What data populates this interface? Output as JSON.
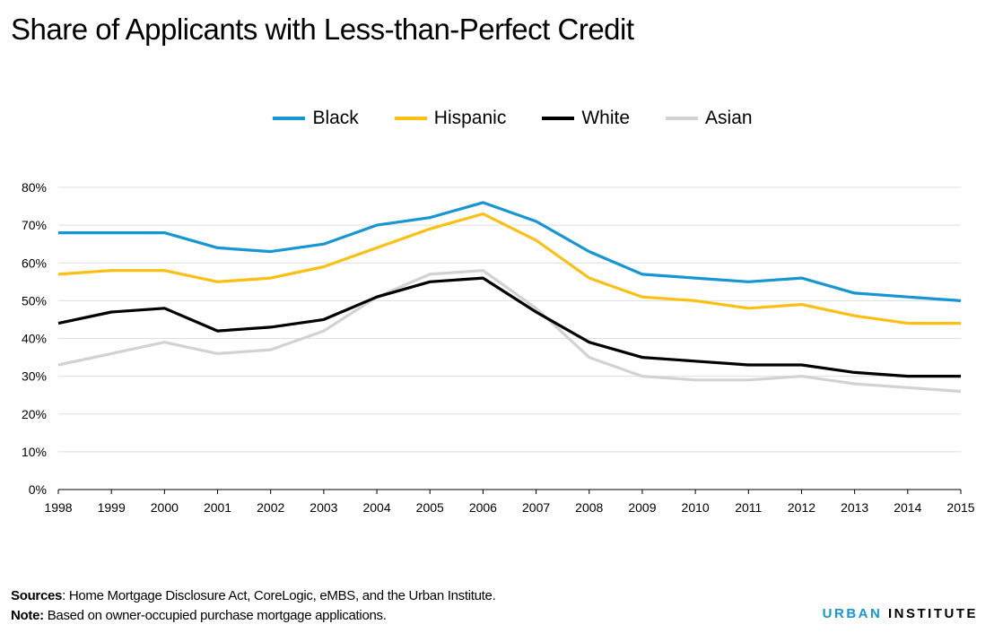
{
  "chart_data": {
    "type": "line",
    "title": "Share of Applicants with Less-than-Perfect Credit",
    "xlabel": "",
    "ylabel": "",
    "x": [
      1998,
      1999,
      2000,
      2001,
      2002,
      2003,
      2004,
      2005,
      2006,
      2007,
      2008,
      2009,
      2010,
      2011,
      2012,
      2013,
      2014,
      2015
    ],
    "ylim": [
      0,
      80
    ],
    "yticks": [
      "0%",
      "10%",
      "20%",
      "30%",
      "40%",
      "50%",
      "60%",
      "70%",
      "80%"
    ],
    "grid": true,
    "legend": "top",
    "series": [
      {
        "name": "Black",
        "color": "#1696d2",
        "values": [
          68,
          68,
          68,
          64,
          63,
          65,
          70,
          72,
          76,
          71,
          63,
          57,
          56,
          55,
          56,
          52,
          51,
          50
        ]
      },
      {
        "name": "Hispanic",
        "color": "#fdbf11",
        "values": [
          57,
          58,
          58,
          55,
          56,
          59,
          64,
          69,
          73,
          66,
          56,
          51,
          50,
          48,
          49,
          46,
          44,
          44
        ]
      },
      {
        "name": "White",
        "color": "#000000",
        "values": [
          44,
          47,
          48,
          42,
          43,
          45,
          51,
          55,
          56,
          47,
          39,
          35,
          34,
          33,
          33,
          31,
          30,
          30
        ]
      },
      {
        "name": "Asian",
        "color": "#d2d2d2",
        "values": [
          33,
          36,
          39,
          36,
          37,
          42,
          51,
          57,
          58,
          48,
          35,
          30,
          29,
          29,
          30,
          28,
          27,
          26
        ]
      }
    ]
  },
  "footer": {
    "sources_label": "Sources",
    "sources_text": ": Home Mortgage Disclosure Act, CoreLogic, eMBS, and the Urban Institute.",
    "note_label": "Note:",
    "note_text": " Based on owner-occupied purchase mortgage applications."
  },
  "logo": {
    "part1": "URBAN",
    "part2": " INSTITUTE"
  }
}
